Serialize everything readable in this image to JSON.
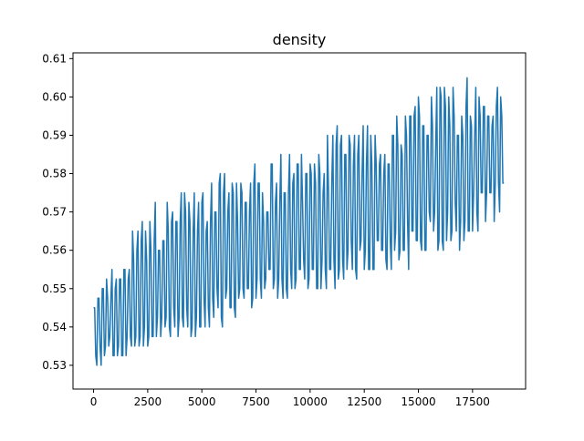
{
  "chart_data": {
    "type": "line",
    "title": "density",
    "xlabel": "",
    "ylabel": "",
    "xlim": [
      -950,
      19950
    ],
    "ylim": [
      0.5238,
      0.6115
    ],
    "x_ticks": [
      0,
      2500,
      5000,
      7500,
      10000,
      12500,
      15000,
      17500
    ],
    "x_tick_labels": [
      "0",
      "2500",
      "5000",
      "7500",
      "10000",
      "12500",
      "15000",
      "17500"
    ],
    "y_ticks": [
      0.53,
      0.54,
      0.55,
      0.56,
      0.57,
      0.58,
      0.59,
      0.6,
      0.61
    ],
    "y_tick_labels": [
      "0.53",
      "0.54",
      "0.55",
      "0.56",
      "0.57",
      "0.58",
      "0.59",
      "0.60",
      "0.61"
    ],
    "grid": false,
    "legend": "none",
    "series": [
      {
        "color": "#1f77b4",
        "x_start": 0,
        "x_step": 50,
        "points": 380,
        "oscillation_period": 200,
        "low_envelope": {
          "x": [
            0,
            2500,
            5000,
            7500,
            10000,
            12500,
            15000,
            17500,
            18950
          ],
          "y": [
            0.53,
            0.533,
            0.538,
            0.546,
            0.548,
            0.552,
            0.555,
            0.562,
            0.567
          ]
        },
        "high_envelope": {
          "x": [
            0,
            2500,
            5000,
            7500,
            10000,
            12500,
            15000,
            17500,
            18950
          ],
          "y": [
            0.548,
            0.572,
            0.58,
            0.586,
            0.59,
            0.593,
            0.6,
            0.605,
            0.603
          ]
        },
        "trend": {
          "x": [
            0,
            18950
          ],
          "y": [
            0.54,
            0.585
          ]
        }
      }
    ]
  }
}
